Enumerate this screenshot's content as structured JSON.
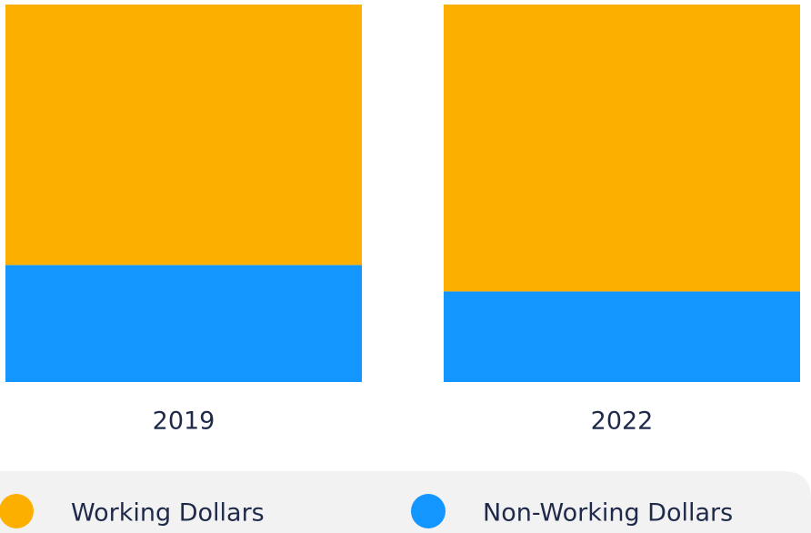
{
  "chart_data": {
    "type": "stacked_bar_100",
    "categories": [
      "2019",
      "2022"
    ],
    "series": [
      {
        "name": "Working Dollars",
        "color": "#fdaf00",
        "values": [
          69,
          76
        ]
      },
      {
        "name": "Non-Working Dollars",
        "color": "#1396ff",
        "values": [
          31,
          24
        ]
      }
    ],
    "ylim": [
      0,
      100
    ]
  }
}
